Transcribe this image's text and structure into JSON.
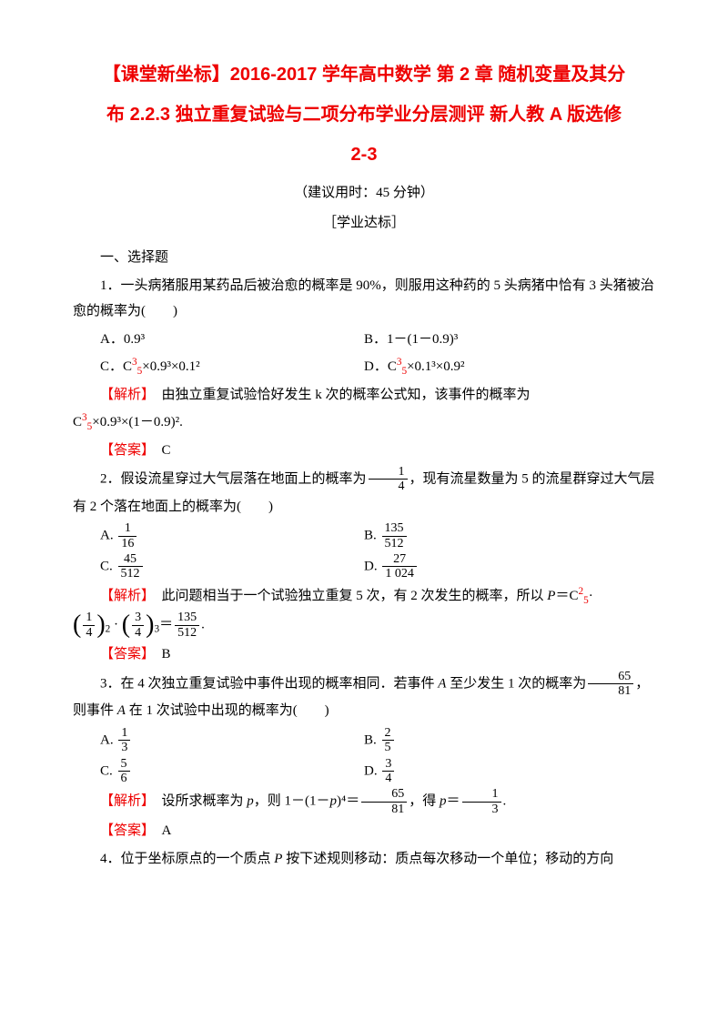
{
  "colors": {
    "accent": "#ee0000",
    "text": "#000000",
    "background": "#ffffff"
  },
  "typography": {
    "title_fontsize": 20,
    "body_fontsize": 15,
    "title_font": "SimHei",
    "body_font": "SimSun"
  },
  "header": {
    "title_line1": "【课堂新坐标】2016-2017 学年高中数学 第 2 章 随机变量及其分",
    "title_line2": "布 2.2.3 独立重复试验与二项分布学业分层测评 新人教 A 版选修",
    "title_line3": "2-3",
    "time_note": "（建议用时：45 分钟）",
    "standard_note": "［学业达标］"
  },
  "section1_head": "一、选择题",
  "q1": {
    "stem": "1．一头病猪服用某药品后被治愈的概率是 90%，则服用这种药的 5 头病猪中恰有 3 头猪被治愈的概率为(　　)",
    "optA": "A．0.9³",
    "optB": "B．1－(1－0.9)³",
    "optC_prefix": "C．C",
    "optC_rest": "×0.9³×0.1²",
    "optD_prefix": "D．C",
    "optD_rest": "×0.1³×0.9²",
    "comb_sup": "3",
    "comb_sub": "5",
    "analysis_label": "【解析】",
    "analysis_p1": "　由独立重复试验恰好发生 k 次的概率公式知，该事件的概率为",
    "analysis_p2_prefix": "C",
    "analysis_p2_rest": "×0.9³×(1－0.9)².",
    "answer_label": "【答案】",
    "answer": "　C"
  },
  "q2": {
    "stem_p1": "2．假设流星穿过大气层落在地面上的概率为",
    "stem_frac_num": "1",
    "stem_frac_den": "4",
    "stem_p2": "，现有流星数量为 5 的流星群穿过大气层有 2 个落在地面上的概率为(　　)",
    "optA_label": "A.",
    "optA_num": "1",
    "optA_den": "16",
    "optB_label": "B.",
    "optB_num": "135",
    "optB_den": "512",
    "optC_label": "C.",
    "optC_num": "45",
    "optC_den": "512",
    "optD_label": "D.",
    "optD_num": "27",
    "optD_den": "1 024",
    "analysis_label": "【解析】",
    "analysis_p1": "　此问题相当于一个试验独立重复 5 次，有 2 次发生的概率，所以 ",
    "p_eq": "P",
    "analysis_p1b": "＝C",
    "comb_sup": "2",
    "comb_sub": "5",
    "dot": "·",
    "f1_num": "1",
    "f1_den": "4",
    "f1_pow": "2",
    "f2_num": "3",
    "f2_den": "4",
    "f2_pow": "3",
    "res_num": "135",
    "res_den": "512",
    "period": ".",
    "answer_label": "【答案】",
    "answer": "　B"
  },
  "q3": {
    "stem_p1": "3．在 4 次独立重复试验中事件出现的概率相同．若事件 ",
    "A": "A",
    "stem_p2": " 至少发生 1 次的概率为",
    "sf_num": "65",
    "sf_den": "81",
    "stem_p3": "，则事件 ",
    "stem_p4": " 在 1 次试验中出现的概率为(　　)",
    "optA_label": "A.",
    "optA_num": "1",
    "optA_den": "3",
    "optB_label": "B.",
    "optB_num": "2",
    "optB_den": "5",
    "optC_label": "C.",
    "optC_num": "5",
    "optC_den": "6",
    "optD_label": "D.",
    "optD_num": "3",
    "optD_den": "4",
    "analysis_label": "【解析】",
    "analysis_p1": "　设所求概率为 ",
    "p": "p",
    "analysis_p2": "，则 1－(1－",
    "analysis_p3": ")⁴＝",
    "an_num": "65",
    "an_den": "81",
    "analysis_p4": "，得 ",
    "analysis_p5": "＝",
    "rn": "1",
    "rd": "3",
    "period": ".",
    "answer_label": "【答案】",
    "answer": "　A"
  },
  "q4": {
    "stem": "4．位于坐标原点的一个质点 P 按下述规则移动：质点每次移动一个单位；移动的方向",
    "P": "P"
  }
}
